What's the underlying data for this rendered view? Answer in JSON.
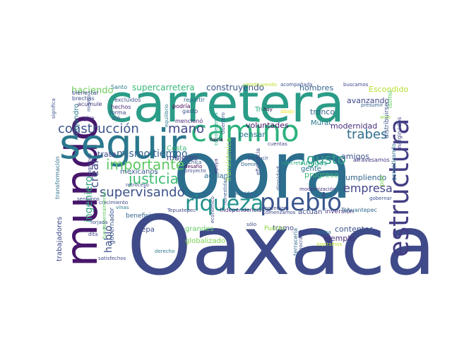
{
  "words": [
    {
      "text": "obra",
      "color": "#2c6e8e"
    },
    {
      "text": "Oaxaca",
      "color": "#3e4a89"
    },
    {
      "text": "carretera",
      "color": "#2a9c87"
    },
    {
      "text": "mundo",
      "color": "#47176c"
    },
    {
      "text": "seguir",
      "color": "#2a788e"
    },
    {
      "text": "camino",
      "color": "#2db27d"
    },
    {
      "text": "pueblo",
      "color": "#39568c"
    },
    {
      "text": "estructura",
      "color": "#433d84"
    },
    {
      "text": "riqueza",
      "color": "#21918c"
    },
    {
      "text": "construcción",
      "color": "#3b528b"
    },
    {
      "text": "mano",
      "color": "#404688"
    },
    {
      "text": "trabes",
      "color": "#2f6c8e"
    },
    {
      "text": "gusto",
      "color": "#2e9d84"
    },
    {
      "text": "importante",
      "color": "#5ec962"
    },
    {
      "text": "justicia",
      "color": "#3fbc73"
    },
    {
      "text": "supervisando",
      "color": "#3b518b"
    },
    {
      "text": "crear",
      "color": "#3e4c8a"
    },
    {
      "text": "ingeniero",
      "color": "#2ea37f"
    },
    {
      "text": "habló",
      "color": "#3c508b"
    },
    {
      "text": "empresa",
      "color": "#404387"
    },
    {
      "text": "mismo tiempo",
      "color": "#33628d"
    },
    {
      "text": "supercarretera",
      "color": "#37b878"
    },
    {
      "text": "construyendo",
      "color": "#3a548c"
    },
    {
      "text": "haciendo",
      "color": "#6ece58"
    },
    {
      "text": "Escondido",
      "color": "#b5de2b"
    },
    {
      "text": "Costa",
      "color": "#3fbc73"
    },
    {
      "text": "mujeres",
      "color": "#414487"
    },
    {
      "text": "mexicanos",
      "color": "#38598c"
    },
    {
      "text": "amigos",
      "color": "#3b528b"
    },
    {
      "text": "avanzando",
      "color": "#404688"
    },
    {
      "text": "modernidad",
      "color": "#472c7a"
    },
    {
      "text": "voluntades",
      "color": "#481769"
    },
    {
      "text": "pensar",
      "color": "#2b758e"
    },
    {
      "text": "tronco",
      "color": "#33638d"
    },
    {
      "text": "hombres",
      "color": "#33628d"
    },
    {
      "text": "cumpliendo",
      "color": "#32658e"
    },
    {
      "text": "progreso",
      "color": "#3aba76"
    },
    {
      "text": "gente",
      "color": "#2c718e"
    },
    {
      "text": "Amigas",
      "color": "#21a585"
    },
    {
      "text": "contentos",
      "color": "#3b528b"
    },
    {
      "text": "ejemplo",
      "color": "#472d7b"
    },
    {
      "text": "adelante",
      "color": "#2e6f8e"
    },
    {
      "text": "tramo",
      "color": "#404688"
    },
    {
      "text": "grandes",
      "color": "#5ec962"
    },
    {
      "text": "sepa",
      "color": "#3e4a89"
    },
    {
      "text": "Transístmico",
      "color": "#84d44b"
    },
    {
      "text": "trabajadores",
      "color": "#3e4989"
    },
    {
      "text": "Alejandro",
      "color": "#2a788e"
    },
    {
      "text": "actúan",
      "color": "#3e4a89"
    },
    {
      "text": "inversión",
      "color": "#46327e"
    },
    {
      "text": "Murat",
      "color": "#2a788e"
    },
    {
      "text": "Puerto",
      "color": "#8fd744"
    },
    {
      "text": "globalizado",
      "color": "#7ad151"
    },
    {
      "text": "beneficio",
      "color": "#33638d"
    },
    {
      "text": "trata",
      "color": "#3f4788"
    },
    {
      "text": "gobernador",
      "color": "#3a548c"
    },
    {
      "text": "Tren",
      "color": "#29af7f"
    },
    {
      "text": "distribuirse",
      "color": "#3b528b"
    },
    {
      "text": "Tehuantepec",
      "color": "#31688e"
    },
    {
      "text": "paz",
      "color": "#7ad151"
    },
    {
      "text": "marginados",
      "color": "#404688"
    },
    {
      "text": "garantizando",
      "color": "#2d708e"
    },
    {
      "text": "atravesamos",
      "color": "#443983"
    },
    {
      "text": "Istmo",
      "color": "#5ec962"
    },
    {
      "text": "bienestar",
      "color": "#3e4a89"
    },
    {
      "text": "Santo",
      "color": "#2a788e"
    },
    {
      "text": "excluidos",
      "color": "#3b528b"
    },
    {
      "text": "repartir",
      "color": "#31688e"
    },
    {
      "text": "gasto",
      "color": "#3b528b"
    },
    {
      "text": "podría",
      "color": "#440154"
    },
    {
      "text": "hechos",
      "color": "#472c7a"
    },
    {
      "text": "forma",
      "color": "#3e4a89"
    },
    {
      "text": "mencionó",
      "color": "#482677"
    },
    {
      "text": "brechas",
      "color": "#3e4c8a"
    },
    {
      "text": "acumule",
      "color": "#453781"
    },
    {
      "text": "gira",
      "color": "#46327e"
    },
    {
      "text": "construyendo",
      "color": "#b8de29"
    },
    {
      "text": "acompañada",
      "color": "#3b528b"
    },
    {
      "text": "buscamos",
      "color": "#3e4a89"
    },
    {
      "text": "hoy",
      "color": "#440154"
    },
    {
      "text": "abajo",
      "color": "#e5e419"
    },
    {
      "text": "eficiencia",
      "color": "#3e4989"
    },
    {
      "text": "dignidad",
      "color": "#38598c"
    },
    {
      "text": "Domingo",
      "color": "#33628d"
    },
    {
      "text": "cuentas",
      "color": "#404387"
    },
    {
      "text": "concreto",
      "color": "#27ad81"
    },
    {
      "text": "modernización",
      "color": "#46327e"
    },
    {
      "text": "Independencia",
      "color": "#46337f"
    },
    {
      "text": "Comenzamos",
      "color": "#3e4a89"
    },
    {
      "text": "terracería",
      "color": "#31688e"
    },
    {
      "text": "democracia",
      "color": "#3e4a89"
    },
    {
      "text": "costosa",
      "color": "#2a788e"
    },
    {
      "text": "aspiramos",
      "color": "#b8de29"
    },
    {
      "text": "Chica",
      "color": "#3a548c"
    },
    {
      "text": "proyecto",
      "color": "#3e4a89"
    },
    {
      "text": "desafío",
      "color": "#440154"
    },
    {
      "text": "apoya",
      "color": "#46327e"
    },
    {
      "text": "honestidad",
      "color": "#365c8d"
    },
    {
      "text": "Tepuxtepec",
      "color": "#3e4a89"
    },
    {
      "text": "conoceremos",
      "color": "#20a386"
    },
    {
      "text": "transformación",
      "color": "#2e6f8e"
    },
    {
      "text": "retroceso",
      "color": "#3b528b"
    },
    {
      "text": "crecimiento",
      "color": "#3e4a89"
    },
    {
      "text": "fundamentalmente",
      "color": "#5ec962"
    },
    {
      "text": "sentimos",
      "color": "#3e4a89"
    },
    {
      "text": "satisfechos",
      "color": "#3e4a89"
    },
    {
      "text": "derecho",
      "color": "#2a788e"
    },
    {
      "text": "significa",
      "color": "#3b528b"
    },
    {
      "text": "presumir",
      "color": "#33638d"
    },
    {
      "text": "gobernar",
      "color": "#3b528b"
    },
    {
      "text": "vinas",
      "color": "#2a788e"
    },
    {
      "text": "dita",
      "color": "#3e4a89"
    },
    {
      "text": "forjada",
      "color": "#3b528b"
    },
    {
      "text": "concebirse",
      "color": "#3e4a89"
    },
    {
      "text": "producir",
      "color": "#3a548c"
    },
    {
      "text": "económico",
      "color": "#3e4a89"
    },
    {
      "text": "acto",
      "color": "#8fd744"
    },
    {
      "text": "sólo",
      "color": "#3e4a89"
    },
    {
      "text": "equidad",
      "color": "#31688e"
    },
    {
      "text": "Guerrero",
      "color": "#3b528b"
    },
    {
      "text": "hacia",
      "color": "#440154"
    },
    {
      "text": "dió",
      "color": "#3b528b"
    },
    {
      "text": "mismo",
      "color": "#3b528b"
    },
    {
      "text": "logrando",
      "color": "#3e4a89"
    },
    {
      "text": "equilibrio",
      "color": "#2a788e"
    }
  ]
}
